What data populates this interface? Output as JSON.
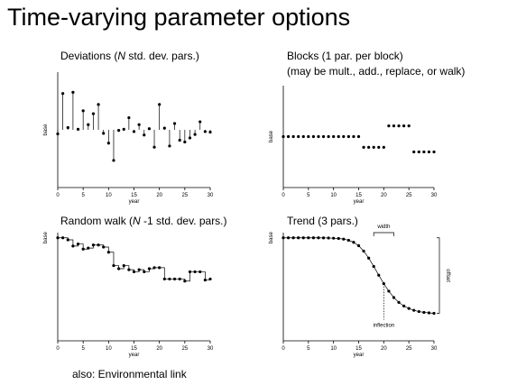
{
  "slide": {
    "title": "Time-varying parameter options",
    "footnote": "also: Environmental link"
  },
  "panels": {
    "deviations": {
      "title_pre": "Deviations (",
      "title_italic": "N",
      "title_post": " std. dev. pars.)"
    },
    "blocks": {
      "title_line1": "Blocks (1 par. per block)",
      "title_line2": "(may be mult., add., replace, or walk)"
    },
    "random_walk": {
      "title_pre": "Random walk (",
      "title_italic": "N",
      "title_post": " -1 std. dev. pars.)"
    },
    "trend": {
      "title": "Trend (3 pars.)",
      "width_label": "width",
      "offset_label": "offset",
      "inflection_label": "inflection"
    }
  },
  "axes": {
    "xlabel": "year",
    "ylabel": "base",
    "xticks": [
      0,
      5,
      10,
      15,
      20,
      25,
      30
    ]
  },
  "chart_data": [
    {
      "type": "scatter",
      "name": "deviations",
      "xlabel": "year",
      "ylabel": "base",
      "xlim": [
        0,
        30
      ],
      "ylim": [
        -1,
        1
      ],
      "baseline": 0,
      "x": [
        0,
        1,
        2,
        3,
        4,
        5,
        6,
        7,
        8,
        9,
        10,
        11,
        12,
        13,
        14,
        15,
        16,
        17,
        18,
        19,
        20,
        21,
        22,
        23,
        24,
        25,
        26,
        27,
        28,
        29,
        30
      ],
      "values": [
        -0.07,
        0.63,
        0.04,
        0.65,
        0.01,
        0.33,
        0.09,
        0.28,
        0.44,
        -0.06,
        -0.23,
        -0.53,
        -0.01,
        0.01,
        0.21,
        -0.03,
        0.09,
        -0.09,
        0.02,
        -0.3,
        0.44,
        0.03,
        -0.28,
        0.11,
        -0.18,
        -0.21,
        -0.14,
        -0.08,
        0.14,
        -0.03,
        -0.04
      ]
    },
    {
      "type": "scatter",
      "name": "blocks",
      "xlabel": "year",
      "ylabel": "base",
      "xlim": [
        0,
        30
      ],
      "ylim": [
        -1,
        1
      ],
      "x": [
        0,
        1,
        2,
        3,
        4,
        5,
        6,
        7,
        8,
        9,
        10,
        11,
        12,
        13,
        14,
        15,
        16,
        17,
        18,
        19,
        20,
        21,
        22,
        23,
        24,
        25,
        26,
        27,
        28,
        29,
        30
      ],
      "values": [
        0,
        0,
        0,
        0,
        0,
        0,
        0,
        0,
        0,
        0,
        0,
        0,
        0,
        0,
        0,
        0,
        -0.21,
        -0.21,
        -0.21,
        -0.21,
        -0.21,
        0.21,
        0.21,
        0.21,
        0.21,
        0.21,
        -0.3,
        -0.3,
        -0.3,
        -0.3,
        -0.3
      ]
    },
    {
      "type": "line",
      "name": "random_walk",
      "xlabel": "year",
      "ylabel": "base",
      "xlim": [
        0,
        30
      ],
      "ylim": [
        -1,
        0.05
      ],
      "x": [
        0,
        1,
        2,
        3,
        4,
        5,
        6,
        7,
        8,
        9,
        10,
        11,
        12,
        13,
        14,
        15,
        16,
        17,
        18,
        19,
        20,
        21,
        22,
        23,
        24,
        25,
        26,
        27,
        28,
        29,
        30
      ],
      "values": [
        0,
        0,
        -0.02,
        -0.08,
        -0.06,
        -0.11,
        -0.1,
        -0.07,
        -0.07,
        -0.09,
        -0.14,
        -0.27,
        -0.3,
        -0.27,
        -0.31,
        -0.33,
        -0.31,
        -0.33,
        -0.3,
        -0.29,
        -0.29,
        -0.4,
        -0.4,
        -0.4,
        -0.4,
        -0.42,
        -0.33,
        -0.33,
        -0.33,
        -0.41,
        -0.4
      ]
    },
    {
      "type": "line",
      "name": "trend",
      "xlabel": "year",
      "ylabel": "base",
      "xlim": [
        0,
        30
      ],
      "ylim": [
        -1,
        0.05
      ],
      "x": [
        0,
        1,
        2,
        3,
        4,
        5,
        6,
        7,
        8,
        9,
        10,
        11,
        12,
        13,
        14,
        15,
        16,
        17,
        18,
        19,
        20,
        21,
        22,
        23,
        24,
        25,
        26,
        27,
        28,
        29,
        30
      ],
      "inflection": 20,
      "width": [
        18,
        22
      ],
      "values": [
        0,
        0,
        0,
        0,
        0,
        0,
        0,
        0,
        -0.001,
        -0.002,
        -0.004,
        -0.007,
        -0.013,
        -0.024,
        -0.044,
        -0.077,
        -0.129,
        -0.197,
        -0.278,
        -0.363,
        -0.445,
        -0.518,
        -0.58,
        -0.627,
        -0.662,
        -0.686,
        -0.704,
        -0.716,
        -0.724,
        -0.729,
        -0.733
      ]
    }
  ]
}
